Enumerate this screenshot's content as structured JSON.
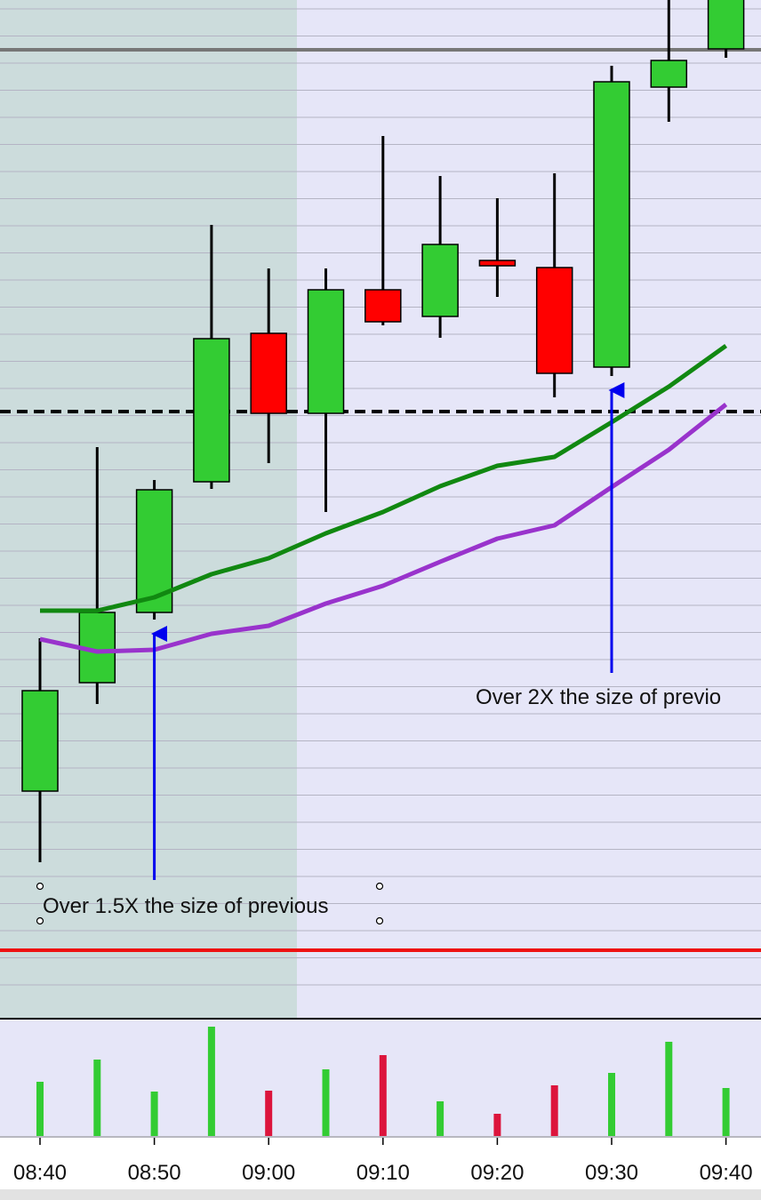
{
  "chart_data": {
    "type": "candlestick",
    "categories": [
      "08:40",
      null,
      "08:50",
      null,
      "09:00",
      null,
      "09:10",
      null,
      "09:20",
      null,
      "09:30",
      null,
      "09:40"
    ],
    "open": [
      255,
      377,
      456,
      603,
      770,
      680,
      819,
      789,
      852,
      844,
      732,
      1047,
      1090
    ],
    "high": [
      427,
      642,
      605,
      892,
      843,
      843,
      992,
      947,
      922,
      950,
      1071,
      1150,
      1170
    ],
    "low": [
      175,
      353,
      448,
      595,
      624,
      569,
      779,
      765,
      811,
      698,
      722,
      1008,
      1080
    ],
    "close": [
      368,
      456,
      594,
      764,
      680,
      819,
      783,
      870,
      846,
      725,
      1053,
      1077,
      1160
    ],
    "up_color": "#33cc33",
    "down_color": "#ff0000",
    "ylim": [
      0,
      1145
    ],
    "yticks": [
      1135,
      1104.5,
      1074,
      1043.5,
      1013,
      982.5,
      952,
      921.5,
      891,
      860.5,
      830,
      799.5,
      769,
      738.5,
      708,
      677.5,
      647,
      616.5,
      586,
      555.5,
      525,
      494.5,
      464,
      433.5,
      403,
      372.5,
      342,
      311.5,
      281,
      250.5,
      220,
      189.5,
      159,
      128.5,
      98,
      67.5,
      37
    ],
    "grid": true,
    "moving_averages": [
      {
        "color": "#118811",
        "values": [
          458,
          458,
          473,
          499,
          517,
          545,
          569,
          598,
          621,
          631,
          670,
          710,
          756
        ]
      },
      {
        "color": "#9933cc",
        "values": [
          426,
          412,
          414,
          432,
          441,
          466,
          486,
          513,
          539,
          554,
          597,
          639,
          690
        ]
      }
    ],
    "levels": [
      {
        "value": 1089,
        "color": "#777777",
        "style": "solid"
      },
      {
        "value": 682,
        "color": "#000000",
        "style": "dashed"
      },
      {
        "value": 76,
        "color": "#ee1111",
        "style": "solid"
      }
    ],
    "volume": {
      "values": [
        61,
        86,
        50,
        123,
        51,
        75,
        91,
        39,
        25,
        57,
        71,
        106,
        54
      ],
      "ylim": [
        0,
        133
      ],
      "up_color": "#33cc33",
      "down_color": "#dc143c"
    },
    "annotations": [
      {
        "text": "Over 1.5X the size of previous",
        "x": "08:50"
      },
      {
        "text": "Over 2X the size of previo",
        "x": "09:30"
      }
    ]
  }
}
